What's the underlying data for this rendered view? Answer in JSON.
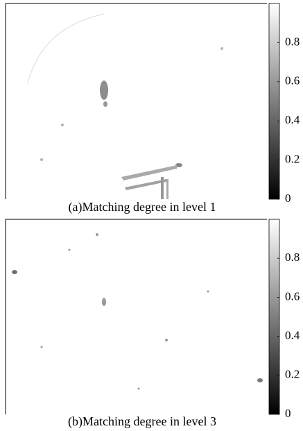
{
  "chart_data": [
    {
      "type": "heatmap",
      "title": "(a)Matching degree in level 1",
      "colormap": [
        "#000000",
        "#ffffff"
      ],
      "clim": [
        0,
        1
      ],
      "colorbar_ticks": [
        0,
        0.2,
        0.4,
        0.6,
        0.8
      ]
    },
    {
      "type": "heatmap",
      "title": "(b)Matching degree in level 3",
      "colormap": [
        "#000000",
        "#ffffff"
      ],
      "clim": [
        0,
        1
      ],
      "colorbar_ticks": [
        0,
        0.2,
        0.4,
        0.6,
        0.8
      ]
    }
  ]
}
